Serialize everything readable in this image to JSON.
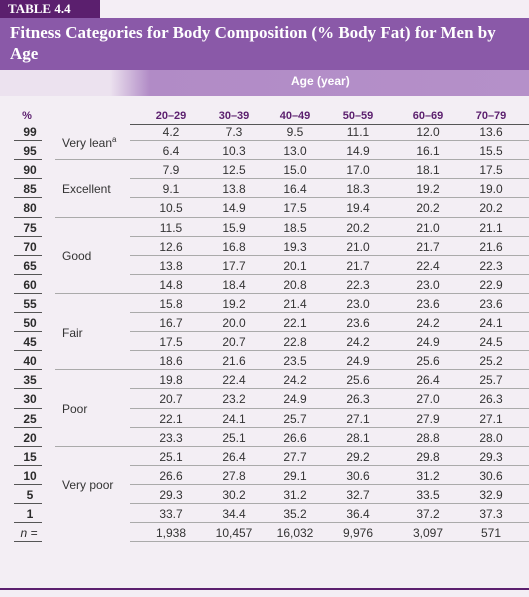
{
  "table_label": "TABLE 4.4",
  "title": "Fitness Categories for Body Composition (% Body Fat) for Men by Age",
  "age_header": "Age (year)",
  "percentile_header": "%",
  "age_groups": [
    "20–29",
    "30–39",
    "40–49",
    "50–59",
    "60–69",
    "70–79"
  ],
  "rows": [
    {
      "pct": "99",
      "values": [
        "4.2",
        "7.3",
        "9.5",
        "11.1",
        "12.0",
        "13.6"
      ]
    },
    {
      "pct": "95",
      "values": [
        "6.4",
        "10.3",
        "13.0",
        "14.9",
        "16.1",
        "15.5"
      ]
    },
    {
      "pct": "90",
      "values": [
        "7.9",
        "12.5",
        "15.0",
        "17.0",
        "18.1",
        "17.5"
      ]
    },
    {
      "pct": "85",
      "values": [
        "9.1",
        "13.8",
        "16.4",
        "18.3",
        "19.2",
        "19.0"
      ]
    },
    {
      "pct": "80",
      "values": [
        "10.5",
        "14.9",
        "17.5",
        "19.4",
        "20.2",
        "20.2"
      ]
    },
    {
      "pct": "75",
      "values": [
        "11.5",
        "15.9",
        "18.5",
        "20.2",
        "21.0",
        "21.1"
      ]
    },
    {
      "pct": "70",
      "values": [
        "12.6",
        "16.8",
        "19.3",
        "21.0",
        "21.7",
        "21.6"
      ]
    },
    {
      "pct": "65",
      "values": [
        "13.8",
        "17.7",
        "20.1",
        "21.7",
        "22.4",
        "22.3"
      ]
    },
    {
      "pct": "60",
      "values": [
        "14.8",
        "18.4",
        "20.8",
        "22.3",
        "23.0",
        "22.9"
      ]
    },
    {
      "pct": "55",
      "values": [
        "15.8",
        "19.2",
        "21.4",
        "23.0",
        "23.6",
        "23.6"
      ]
    },
    {
      "pct": "50",
      "values": [
        "16.7",
        "20.0",
        "22.1",
        "23.6",
        "24.2",
        "24.1"
      ]
    },
    {
      "pct": "45",
      "values": [
        "17.5",
        "20.7",
        "22.8",
        "24.2",
        "24.9",
        "24.5"
      ]
    },
    {
      "pct": "40",
      "values": [
        "18.6",
        "21.6",
        "23.5",
        "24.9",
        "25.6",
        "25.2"
      ]
    },
    {
      "pct": "35",
      "values": [
        "19.8",
        "22.4",
        "24.2",
        "25.6",
        "26.4",
        "25.7"
      ]
    },
    {
      "pct": "30",
      "values": [
        "20.7",
        "23.2",
        "24.9",
        "26.3",
        "27.0",
        "26.3"
      ]
    },
    {
      "pct": "25",
      "values": [
        "22.1",
        "24.1",
        "25.7",
        "27.1",
        "27.9",
        "27.1"
      ]
    },
    {
      "pct": "20",
      "values": [
        "23.3",
        "25.1",
        "26.6",
        "28.1",
        "28.8",
        "28.0"
      ]
    },
    {
      "pct": "15",
      "values": [
        "25.1",
        "26.4",
        "27.7",
        "29.2",
        "29.8",
        "29.3"
      ]
    },
    {
      "pct": "10",
      "values": [
        "26.6",
        "27.8",
        "29.1",
        "30.6",
        "31.2",
        "30.6"
      ]
    },
    {
      "pct": "5",
      "values": [
        "29.3",
        "30.2",
        "31.2",
        "32.7",
        "33.5",
        "32.9"
      ]
    },
    {
      "pct": "1",
      "values": [
        "33.7",
        "34.4",
        "35.2",
        "36.4",
        "37.2",
        "37.3"
      ]
    }
  ],
  "n_row": {
    "label": "n =",
    "values": [
      "1,938",
      "10,457",
      "16,032",
      "9,976",
      "3,097",
      "571"
    ]
  },
  "categories": [
    {
      "label": "Very lean",
      "footnote_mark": "a",
      "start_row": 0,
      "end_row": 1
    },
    {
      "label": "Excellent",
      "start_row": 2,
      "end_row": 4
    },
    {
      "label": "Good",
      "start_row": 5,
      "end_row": 8
    },
    {
      "label": "Fair",
      "start_row": 9,
      "end_row": 12
    },
    {
      "label": "Poor",
      "start_row": 13,
      "end_row": 16
    },
    {
      "label": "Very poor",
      "start_row": 17,
      "end_row": 20
    }
  ],
  "colors": {
    "dark_purple": "#5b1f6e",
    "title_purple": "#8a59a8",
    "band_purple": "#b590c9",
    "background": "#f3eef4"
  }
}
